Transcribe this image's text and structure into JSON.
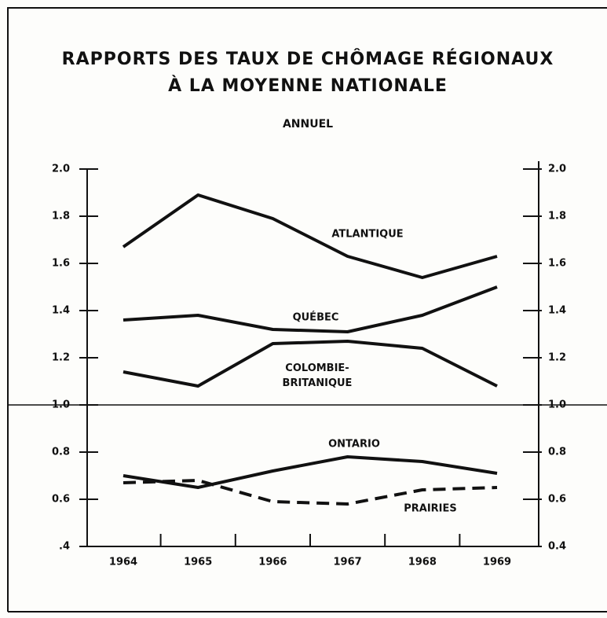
{
  "chart_data": {
    "type": "line",
    "title": [
      "RAPPORTS DES TAUX DE CHÔMAGE RÉGIONAUX",
      "À LA MOYENNE NATIONALE"
    ],
    "subtitle": "ANNUEL",
    "categories": [
      "1964",
      "1965",
      "1966",
      "1967",
      "1968",
      "1969"
    ],
    "series": [
      {
        "name": "ATLANTIQUE",
        "color": "#111111",
        "style": "solid",
        "values": [
          1.67,
          1.89,
          1.79,
          1.63,
          1.54,
          1.63
        ]
      },
      {
        "name": "QUÉBEC",
        "color": "#111111",
        "style": "solid",
        "values": [
          1.36,
          1.38,
          1.32,
          1.31,
          1.38,
          1.5
        ]
      },
      {
        "name": "COLOMBIE-BRITANIQUE",
        "color": "#111111",
        "style": "solid",
        "values": [
          1.14,
          1.08,
          1.26,
          1.27,
          1.24,
          1.08
        ]
      },
      {
        "name": "ONTARIO",
        "color": "#111111",
        "style": "solid",
        "values": [
          0.7,
          0.65,
          0.72,
          0.78,
          0.76,
          0.71
        ]
      },
      {
        "name": "PRAIRIES",
        "color": "#111111",
        "style": "dashed",
        "values": [
          0.67,
          0.68,
          0.59,
          0.58,
          0.64,
          0.65
        ]
      }
    ],
    "ylim": [
      0.4,
      2.0
    ],
    "yticks": [
      {
        "value": 2.0,
        "label": "2.0"
      },
      {
        "value": 1.8,
        "label": "1.8"
      },
      {
        "value": 1.6,
        "label": "1.6"
      },
      {
        "value": 1.4,
        "label": "1.4"
      },
      {
        "value": 1.2,
        "label": "1.2"
      },
      {
        "value": 1.0,
        "label": "1.0"
      },
      {
        "value": 0.8,
        "label": "0.8"
      },
      {
        "value": 0.6,
        "label": "0.6"
      },
      {
        "value": 0.4,
        "label": ".4"
      }
    ],
    "y2lim": [
      0.4,
      2.0
    ],
    "y2ticks": [
      {
        "value": 2.0,
        "label": "2.0"
      },
      {
        "value": 1.8,
        "label": "1.8"
      },
      {
        "value": 1.6,
        "label": "1.6"
      },
      {
        "value": 1.4,
        "label": "1.4"
      },
      {
        "value": 1.2,
        "label": "1.2"
      },
      {
        "value": 1.0,
        "label": "1.0"
      },
      {
        "value": 0.8,
        "label": "0.8"
      },
      {
        "value": 0.6,
        "label": "0.6"
      },
      {
        "value": 0.4,
        "label": "0.4"
      }
    ]
  }
}
